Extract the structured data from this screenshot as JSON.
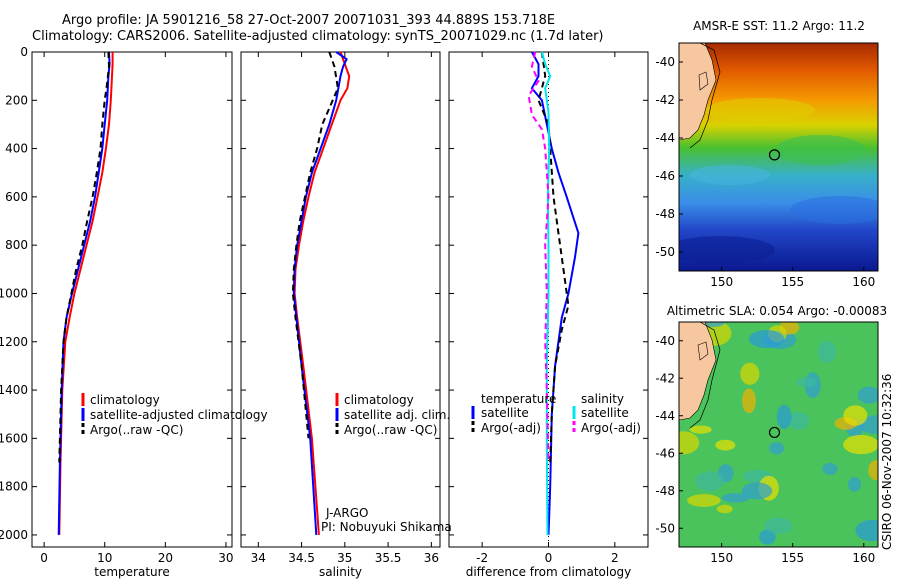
{
  "header": {
    "title_line1": "Argo profile: JA 5901216_58 27-Oct-2007 20071031_393 44.889S 153.718E",
    "title_line2": "Climatology: CARS2006. Satellite-adjusted climatology: synTS_20071029.nc (1.7d later)"
  },
  "stamp": "CSIRO 06-Nov-2007 10:32:36",
  "colors": {
    "clim": "#ff0000",
    "sat": "#0000ff",
    "argo": "#000000",
    "cyan": "#00e5ee",
    "magenta": "#ff00ff",
    "land": "#f7c7a0"
  },
  "chart_data": [
    {
      "type": "line",
      "id": "temperature",
      "xlabel": "temperature",
      "xlim": [
        -2,
        31
      ],
      "ylim": [
        2050,
        0
      ],
      "xticks": [
        0,
        10,
        20,
        30
      ],
      "yticks": [
        0,
        200,
        400,
        600,
        800,
        1000,
        1200,
        1400,
        1600,
        1800,
        2000
      ],
      "legend": {
        "location": "lower-right",
        "entries": [
          "climatology",
          "satellite-adjusted climatology",
          "Argo(..raw -QC)"
        ]
      },
      "series": [
        {
          "name": "climatology",
          "color": "red",
          "style": "solid",
          "x": [
            11.3,
            11.3,
            11.2,
            11.0,
            10.7,
            10.2,
            9.6,
            8.8,
            8.0,
            7.0,
            6.0,
            5.0,
            4.2,
            3.5,
            3.0,
            2.7,
            2.5
          ],
          "y": [
            0,
            50,
            100,
            200,
            300,
            400,
            500,
            600,
            700,
            800,
            900,
            1000,
            1100,
            1200,
            1400,
            1700,
            2000
          ]
        },
        {
          "name": "satellite-adjusted climatology",
          "color": "blue",
          "style": "solid",
          "x": [
            10.7,
            10.8,
            10.6,
            10.4,
            10.0,
            9.6,
            9.0,
            8.4,
            7.6,
            6.6,
            5.6,
            4.6,
            3.7,
            3.2,
            2.9,
            2.6,
            2.4
          ],
          "y": [
            0,
            50,
            100,
            200,
            300,
            400,
            500,
            600,
            700,
            800,
            900,
            1000,
            1100,
            1200,
            1400,
            1700,
            2000
          ]
        },
        {
          "name": "Argo(..raw -QC)",
          "color": "black",
          "style": "dashed",
          "x": [
            10.6,
            10.7,
            10.3,
            10.0,
            9.6,
            9.3,
            8.7,
            8.0,
            7.1,
            6.3,
            5.3,
            4.5,
            3.7,
            3.2,
            2.8,
            2.5
          ],
          "y": [
            0,
            60,
            150,
            200,
            300,
            400,
            500,
            600,
            700,
            800,
            900,
            1000,
            1100,
            1200,
            1400,
            1700
          ]
        }
      ]
    },
    {
      "type": "line",
      "id": "salinity",
      "xlabel": "salinity",
      "xlim": [
        33.8,
        36.1
      ],
      "ylim": [
        2050,
        0
      ],
      "xticks": [
        34,
        34.5,
        35,
        35.5,
        36
      ],
      "legend": {
        "location": "lower-right",
        "entries": [
          "climatology",
          "satellite adj. clim.",
          "Argo(..raw -QC)"
        ]
      },
      "annotation": [
        "J-ARGO",
        "PI: Nobuyuki Shikama"
      ],
      "series": [
        {
          "name": "climatology",
          "color": "red",
          "style": "solid",
          "x": [
            34.95,
            35.0,
            35.05,
            35.03,
            34.95,
            34.85,
            34.75,
            34.65,
            34.58,
            34.52,
            34.47,
            34.43,
            34.42,
            34.45,
            34.52,
            34.62,
            34.7
          ],
          "y": [
            0,
            50,
            100,
            150,
            200,
            300,
            400,
            500,
            600,
            700,
            800,
            900,
            1000,
            1100,
            1300,
            1600,
            2000
          ]
        },
        {
          "name": "satellite adj. clim.",
          "color": "blue",
          "style": "solid",
          "x": [
            34.9,
            35.02,
            34.98,
            34.95,
            34.9,
            34.82,
            34.72,
            34.62,
            34.55,
            34.5,
            34.45,
            34.42,
            34.41,
            34.44,
            34.5,
            34.6,
            34.67
          ],
          "y": [
            0,
            30,
            60,
            100,
            200,
            300,
            400,
            500,
            600,
            700,
            800,
            900,
            1000,
            1100,
            1300,
            1600,
            2000
          ]
        },
        {
          "name": "Argo(..raw -QC)",
          "color": "black",
          "style": "dashed",
          "x": [
            34.82,
            34.88,
            34.92,
            34.86,
            34.8,
            34.74,
            34.68,
            34.6,
            34.54,
            34.48,
            34.44,
            34.41,
            34.4,
            34.43,
            34.5,
            34.58
          ],
          "y": [
            0,
            60,
            150,
            200,
            250,
            300,
            400,
            500,
            600,
            700,
            800,
            900,
            1000,
            1100,
            1300,
            1600
          ]
        }
      ]
    },
    {
      "type": "line",
      "id": "difference",
      "xlabel": "difference from climatology",
      "xlim": [
        -3,
        3
      ],
      "ylim": [
        2050,
        0
      ],
      "xticks": [
        -2,
        0,
        2
      ],
      "legend": {
        "location": "lower",
        "groups": [
          {
            "heading": "temperature",
            "entries": [
              "satellite",
              "Argo(-adj)"
            ]
          },
          {
            "heading": "salinity",
            "entries": [
              "satellite",
              "Argo(-adj)"
            ]
          }
        ]
      },
      "series": [
        {
          "name": "temperature satellite",
          "color": "blue",
          "style": "solid",
          "x": [
            -0.5,
            -0.3,
            -0.3,
            -0.5,
            -0.2,
            0.1,
            0.3,
            0.55,
            0.9,
            0.8,
            0.6,
            0.4,
            0.2,
            0.1,
            0.05,
            0.0
          ],
          "y": [
            0,
            50,
            100,
            150,
            200,
            400,
            500,
            600,
            750,
            850,
            1000,
            1100,
            1300,
            1500,
            1800,
            2000
          ]
        },
        {
          "name": "temperature Argo(-adj)",
          "color": "black",
          "style": "dashed",
          "x": [
            -0.2,
            -0.1,
            -0.3,
            0.0,
            0.05,
            0.15,
            0.35,
            0.5,
            0.6,
            0.4,
            0.2,
            0.1,
            0.05
          ],
          "y": [
            0,
            100,
            200,
            300,
            400,
            600,
            800,
            950,
            1050,
            1150,
            1300,
            1500,
            1700
          ]
        },
        {
          "name": "salinity satellite",
          "color": "cyan",
          "style": "solid",
          "x": [
            -0.2,
            -0.1,
            0.05,
            -0.1,
            0.0,
            0.02,
            -0.02,
            0.0,
            0.0,
            -0.05,
            -0.05,
            -0.03
          ],
          "y": [
            0,
            50,
            100,
            150,
            250,
            400,
            600,
            800,
            1000,
            1300,
            1600,
            2000
          ]
        },
        {
          "name": "salinity Argo(-adj)",
          "color": "magenta",
          "style": "dashed",
          "x": [
            -0.4,
            -0.5,
            -0.3,
            -0.6,
            -0.5,
            -0.2,
            -0.1,
            0.0,
            -0.1,
            -0.05,
            -0.1,
            -0.05,
            0.0
          ],
          "y": [
            0,
            60,
            120,
            180,
            260,
            320,
            400,
            600,
            800,
            1000,
            1200,
            1400,
            1700
          ]
        }
      ]
    },
    {
      "type": "heatmap",
      "id": "sst-map",
      "title": "AMSR-E SST: 11.2 Argo: 11.2",
      "xlim": [
        147,
        161
      ],
      "ylim": [
        -51,
        -39
      ],
      "xticks": [
        150,
        155,
        160
      ],
      "yticks": [
        -40,
        -42,
        -44,
        -46,
        -48,
        -50
      ],
      "marker": {
        "lon": 153.718,
        "lat": -44.889
      }
    },
    {
      "type": "heatmap",
      "id": "sla-map",
      "title": "Altimetric SLA: 0.054 Argo: -0.00083",
      "xlim": [
        147,
        161
      ],
      "ylim": [
        -51,
        -39
      ],
      "xticks": [
        150,
        155,
        160
      ],
      "yticks": [
        -40,
        -42,
        -44,
        -46,
        -48,
        -50
      ],
      "marker": {
        "lon": 153.718,
        "lat": -44.889
      }
    }
  ]
}
